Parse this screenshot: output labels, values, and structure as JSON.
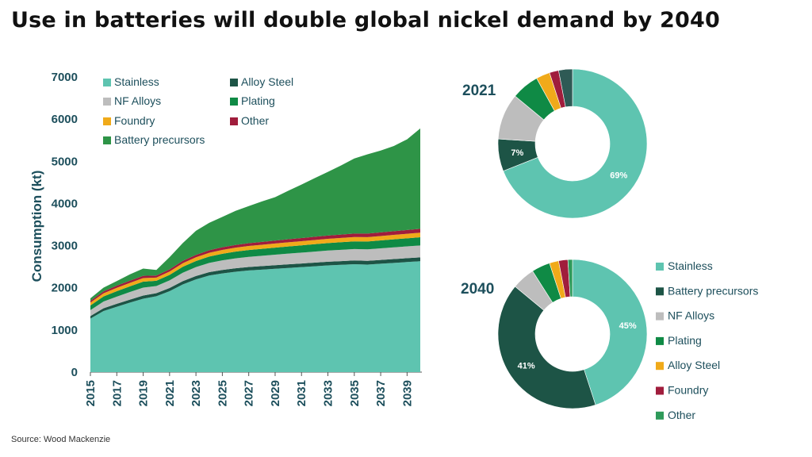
{
  "title": "Use in batteries will double global nickel demand by 2040",
  "source": "Source: Wood Mackenzie",
  "colors": {
    "Stainless": "#5ec4b0",
    "Alloy Steel": "#f0aa1a",
    "NF Alloys": "#bdbdbd",
    "Plating": "#0f8a45",
    "Foundry": "#a01d3c",
    "Other": "#2e9a5a",
    "Battery precursors": "#2e9447",
    "Battery precursors (2040)": "#1d5446",
    "Other (2021)": "#2e5a55",
    "Alloy Steel (area)": "#1d5446",
    "Foundry (area)": "#f0aa1a",
    "Other (area)": "#a01d3c"
  },
  "chart_data": [
    {
      "type": "area",
      "stacked": true,
      "xlabel": "",
      "ylabel": "Consumption (kt)",
      "ylim": [
        0,
        7000
      ],
      "yticks": [
        "0",
        "1000",
        "2000",
        "3000",
        "4000",
        "5000",
        "6000",
        "7000"
      ],
      "xticks": [
        "2015",
        "2017",
        "2019",
        "2021",
        "2023",
        "2025",
        "2027",
        "2029",
        "2031",
        "2033",
        "2035",
        "2037",
        "2039"
      ],
      "legend_placement": "top-left",
      "x": [
        2015,
        2016,
        2017,
        2018,
        2019,
        2020,
        2021,
        2022,
        2023,
        2024,
        2025,
        2026,
        2027,
        2028,
        2029,
        2030,
        2031,
        2032,
        2033,
        2034,
        2035,
        2036,
        2037,
        2038,
        2039,
        2040
      ],
      "series": [
        {
          "name": "Stainless",
          "values": [
            1270,
            1450,
            1550,
            1650,
            1740,
            1800,
            1920,
            2080,
            2200,
            2290,
            2340,
            2380,
            2410,
            2430,
            2450,
            2470,
            2490,
            2510,
            2530,
            2545,
            2560,
            2550,
            2570,
            2590,
            2610,
            2630
          ]
        },
        {
          "name": "Alloy Steel",
          "values": [
            60,
            65,
            70,
            70,
            75,
            72,
            75,
            78,
            80,
            80,
            82,
            82,
            84,
            84,
            85,
            86,
            86,
            87,
            88,
            88,
            89,
            90,
            90,
            91,
            92,
            92
          ]
        },
        {
          "name": "NF Alloys",
          "values": [
            140,
            160,
            170,
            180,
            190,
            170,
            180,
            200,
            210,
            220,
            230,
            235,
            240,
            245,
            250,
            255,
            258,
            262,
            265,
            268,
            270,
            272,
            275,
            278,
            280,
            282
          ]
        },
        {
          "name": "Plating",
          "values": [
            110,
            120,
            130,
            135,
            140,
            125,
            130,
            140,
            145,
            150,
            155,
            160,
            162,
            165,
            168,
            170,
            172,
            175,
            178,
            180,
            182,
            185,
            188,
            190,
            192,
            195
          ]
        },
        {
          "name": "Foundry",
          "values": [
            70,
            75,
            80,
            82,
            85,
            75,
            80,
            85,
            88,
            90,
            92,
            94,
            95,
            96,
            97,
            98,
            99,
            100,
            101,
            102,
            103,
            104,
            105,
            106,
            107,
            108
          ]
        },
        {
          "name": "Other",
          "values": [
            40,
            45,
            50,
            52,
            55,
            50,
            52,
            56,
            58,
            60,
            62,
            64,
            66,
            68,
            70,
            72,
            74,
            76,
            78,
            80,
            82,
            84,
            86,
            88,
            90,
            92
          ]
        },
        {
          "name": "Battery precursors",
          "values": [
            60,
            90,
            110,
            150,
            170,
            130,
            290,
            420,
            570,
            650,
            720,
            810,
            880,
            960,
            1030,
            1150,
            1270,
            1390,
            1510,
            1640,
            1780,
            1880,
            1940,
            2020,
            2150,
            2380
          ]
        }
      ]
    },
    {
      "type": "pie",
      "donut": true,
      "title": "2021",
      "labels": [
        "Stainless",
        "Battery precursors",
        "NF Alloys",
        "Plating",
        "Alloy Steel",
        "Foundry",
        "Other"
      ],
      "values": [
        69,
        7,
        10,
        6,
        3,
        2,
        3
      ],
      "data_labels": [
        "69%",
        "7%",
        "",
        "",
        "",
        "",
        ""
      ]
    },
    {
      "type": "pie",
      "donut": true,
      "title": "2040",
      "labels": [
        "Stainless",
        "Battery precursors",
        "NF Alloys",
        "Plating",
        "Alloy Steel",
        "Foundry",
        "Other"
      ],
      "values": [
        45,
        41,
        5,
        4,
        2,
        2,
        1
      ],
      "data_labels": [
        "45%",
        "41%",
        "",
        "",
        "",
        "",
        ""
      ]
    }
  ],
  "area_legend": [
    "Stainless",
    "Alloy Steel",
    "NF Alloys",
    "Plating",
    "Foundry",
    "Other",
    "Battery precursors"
  ],
  "donut_legend": [
    "Stainless",
    "Battery precursors",
    "NF Alloys",
    "Plating",
    "Alloy Steel",
    "Foundry",
    "Other"
  ]
}
